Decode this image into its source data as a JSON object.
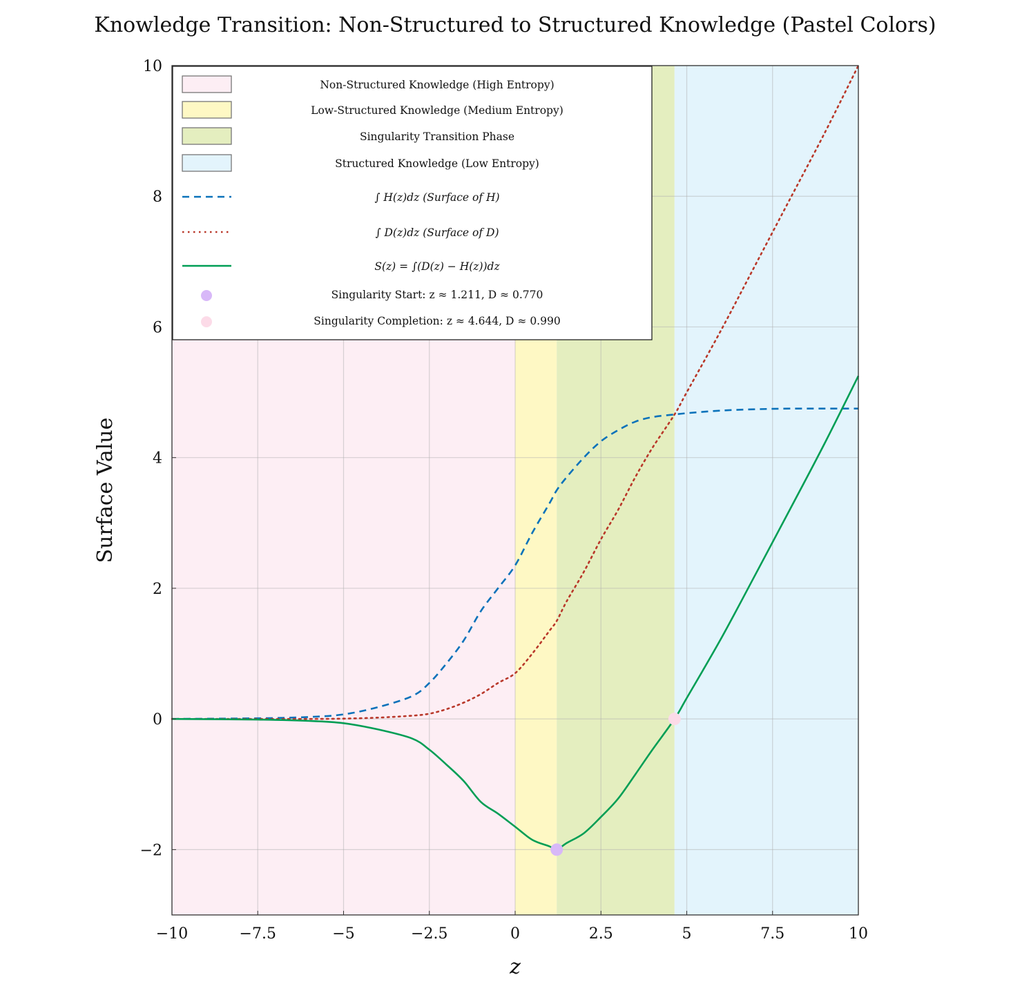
{
  "chart_data": {
    "type": "line",
    "title": "Knowledge Transition: Non-Structured to Structured Knowledge (Pastel Colors)",
    "xlabel": "z",
    "ylabel": "Surface Value",
    "xlim": [
      -10,
      10
    ],
    "ylim": [
      -3,
      10
    ],
    "grid": true,
    "legend_placement": "top-left",
    "x_ticks": [
      -10,
      -7.5,
      -5,
      -2.5,
      0,
      2.5,
      5,
      7.5,
      10
    ],
    "x_tick_labels": [
      "−10",
      "−7.5",
      "−5",
      "−2.5",
      "0",
      "2.5",
      "5",
      "7.5",
      "10"
    ],
    "y_ticks": [
      -2,
      0,
      2,
      4,
      6,
      8,
      10
    ],
    "y_tick_labels": [
      "−2",
      "0",
      "2",
      "4",
      "6",
      "8",
      "10"
    ],
    "regions": [
      {
        "name": "Non-Structured Knowledge (High Entropy)",
        "from": -10,
        "to": 0,
        "color": "#fdeef4"
      },
      {
        "name": "Low-Structured Knowledge (Medium Entropy)",
        "from": 0,
        "to": 1.211,
        "color": "#fef8c4"
      },
      {
        "name": "Singularity Transition Phase",
        "from": 1.211,
        "to": 4.644,
        "color": "#e4eebf"
      },
      {
        "name": "Structured Knowledge (Low Entropy)",
        "from": 4.644,
        "to": 10,
        "color": "#e3f4fc"
      }
    ],
    "x": [
      -10,
      -7.5,
      -6,
      -5,
      -4,
      -3,
      -2.5,
      -2,
      -1.5,
      -1,
      -0.5,
      0,
      0.5,
      1,
      1.211,
      1.5,
      2,
      2.5,
      3,
      3.5,
      4,
      4.644,
      5,
      6,
      7,
      8,
      9,
      10
    ],
    "series": [
      {
        "name": "∫ H(z)dz (Surface of H)",
        "style": "dashed",
        "color": "#0a72ba",
        "values": [
          0,
          0.01,
          0.03,
          0.07,
          0.18,
          0.35,
          0.55,
          0.85,
          1.2,
          1.65,
          2.0,
          2.35,
          2.85,
          3.3,
          3.5,
          3.7,
          4.0,
          4.25,
          4.42,
          4.55,
          4.62,
          4.66,
          4.68,
          4.72,
          4.74,
          4.75,
          4.75,
          4.75
        ]
      },
      {
        "name": "∫ D(z)dz (Surface of D)",
        "style": "dotted",
        "color": "#b9382a",
        "values": [
          0,
          0,
          0,
          0.005,
          0.02,
          0.05,
          0.08,
          0.15,
          0.25,
          0.38,
          0.55,
          0.7,
          1.0,
          1.35,
          1.5,
          1.8,
          2.25,
          2.75,
          3.2,
          3.7,
          4.15,
          4.66,
          5.0,
          5.95,
          6.95,
          7.95,
          8.95,
          10.0
        ]
      },
      {
        "name": "S(z) = ∫(D(z) − H(z))dz",
        "style": "solid",
        "color": "#009e55",
        "values": [
          0,
          -0.01,
          -0.03,
          -0.065,
          -0.16,
          -0.3,
          -0.47,
          -0.7,
          -0.95,
          -1.27,
          -1.45,
          -1.65,
          -1.85,
          -1.95,
          -2.0,
          -1.9,
          -1.75,
          -1.5,
          -1.22,
          -0.85,
          -0.47,
          0,
          0.32,
          1.23,
          2.21,
          3.2,
          4.2,
          5.25
        ]
      }
    ],
    "markers": [
      {
        "name": "Singularity Start: z ≈ 1.211, D ≈ 0.770",
        "x": 1.211,
        "y": -2.0,
        "color": "#d8b8f8"
      },
      {
        "name": "Singularity Completion: z ≈ 4.644, D ≈ 0.990",
        "x": 4.644,
        "y": 0,
        "color": "#fcdbe8"
      }
    ]
  }
}
